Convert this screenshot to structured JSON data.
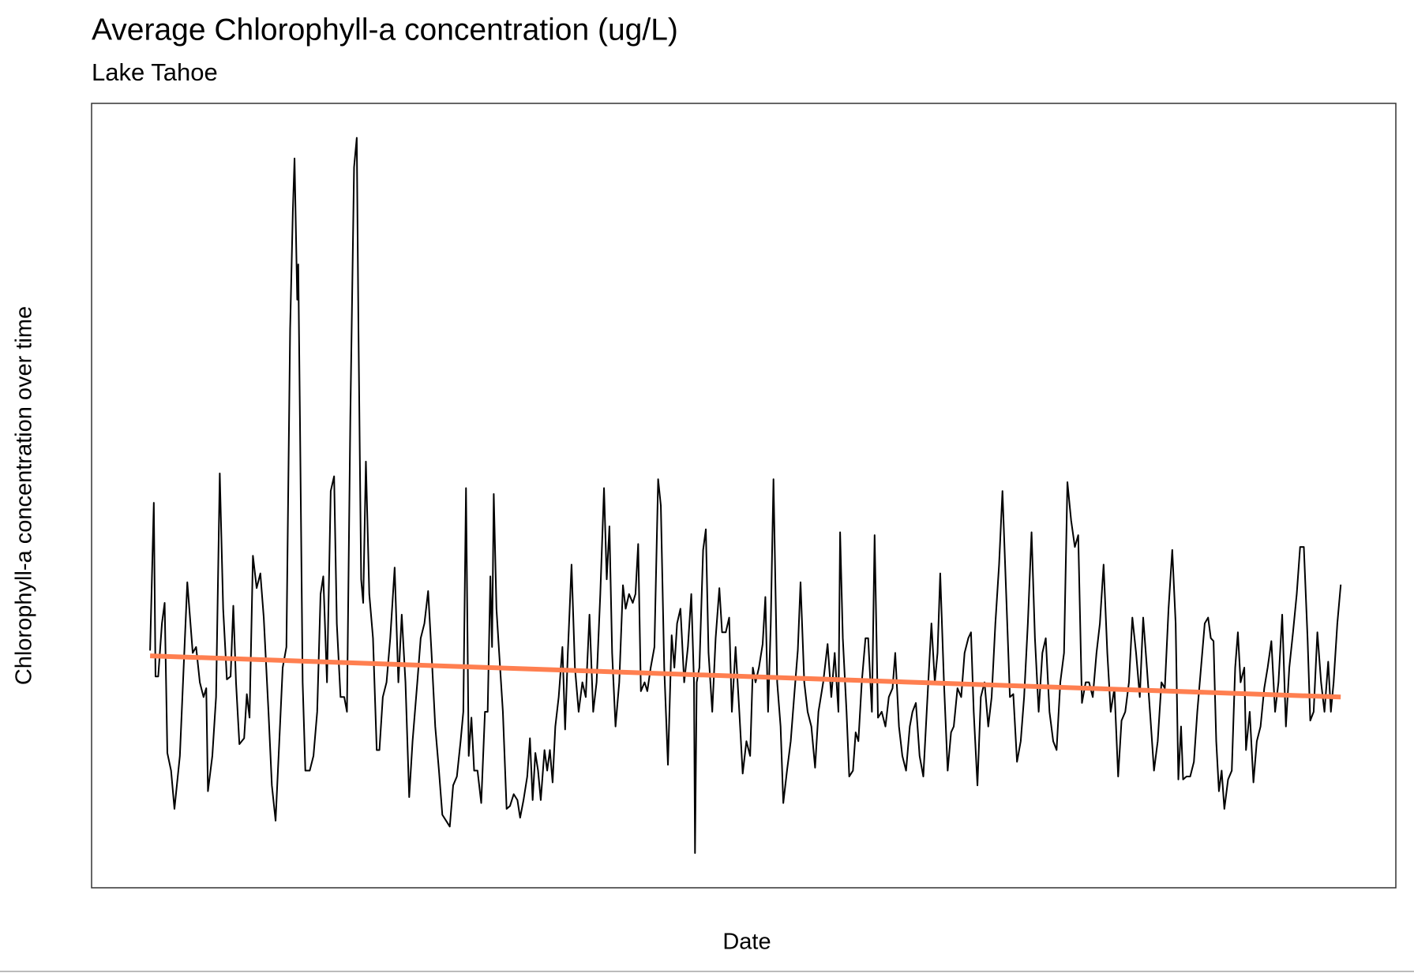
{
  "chart_data": {
    "type": "line",
    "title": "Average Chlorophyll-a concentration (ug/L)",
    "subtitle": "Lake Tahoe",
    "x_label": "Date",
    "y_label": "Chlorophyll-a concentration over time",
    "xlim": [
      1982.16,
      2020.72
    ],
    "ylim": [
      -0.098,
      2.567
    ],
    "xticks": [
      1990,
      2000,
      2010,
      2020
    ],
    "yticks": [
      {
        "value": 0,
        "label": "0.0"
      },
      0.5,
      {
        "value": 1,
        "label": "1.0"
      },
      1.5,
      {
        "value": 2,
        "label": "2.0"
      },
      2.5
    ],
    "grid": true,
    "minor_grid": true,
    "x": [
      1983.89,
      1984.0,
      1984.05,
      1984.13,
      1984.24,
      1984.32,
      1984.4,
      1984.51,
      1984.61,
      1984.77,
      1984.99,
      1985.15,
      1985.25,
      1985.36,
      1985.47,
      1985.55,
      1985.6,
      1985.73,
      1985.84,
      1985.95,
      1986.05,
      1986.16,
      1986.27,
      1986.35,
      1986.43,
      1986.53,
      1986.67,
      1986.75,
      1986.83,
      1986.93,
      1987.04,
      1987.15,
      1987.25,
      1987.39,
      1987.49,
      1987.6,
      1987.71,
      1987.81,
      1987.92,
      1988.03,
      1988.11,
      1988.16,
      1988.24,
      1988.27,
      1988.32,
      1988.4,
      1988.48,
      1988.61,
      1988.72,
      1988.83,
      1988.93,
      1989.01,
      1989.12,
      1989.23,
      1989.33,
      1989.41,
      1989.52,
      1989.63,
      1989.71,
      1989.81,
      1989.92,
      1990.0,
      1990.05,
      1990.13,
      1990.19,
      1990.27,
      1990.37,
      1990.48,
      1990.59,
      1990.67,
      1990.77,
      1990.88,
      1990.99,
      1991.12,
      1991.23,
      1991.33,
      1991.44,
      1991.55,
      1991.65,
      1991.79,
      1991.89,
      1992.0,
      1992.11,
      1992.21,
      1992.32,
      1992.43,
      1992.53,
      1992.64,
      1992.75,
      1992.85,
      1992.96,
      1993.07,
      1993.15,
      1993.23,
      1993.31,
      1993.39,
      1993.47,
      1993.57,
      1993.68,
      1993.79,
      1993.87,
      1993.95,
      1994.0,
      1994.05,
      1994.13,
      1994.21,
      1994.32,
      1994.43,
      1994.53,
      1994.64,
      1994.75,
      1994.83,
      1994.93,
      1995.04,
      1995.12,
      1995.2,
      1995.28,
      1995.36,
      1995.44,
      1995.55,
      1995.63,
      1995.71,
      1995.79,
      1995.87,
      1995.97,
      1996.08,
      1996.16,
      1996.24,
      1996.35,
      1996.45,
      1996.56,
      1996.67,
      1996.77,
      1996.88,
      1996.99,
      1997.09,
      1997.2,
      1997.31,
      1997.39,
      1997.47,
      1997.55,
      1997.65,
      1997.76,
      1997.87,
      1997.95,
      1998.05,
      1998.16,
      1998.24,
      1998.32,
      1998.4,
      1998.51,
      1998.59,
      1998.69,
      1998.8,
      1998.91,
      1998.99,
      1999.09,
      1999.2,
      1999.31,
      1999.39,
      1999.47,
      1999.57,
      1999.68,
      1999.79,
      1999.89,
      1999.97,
      2000.0,
      2000.05,
      2000.13,
      2000.24,
      2000.32,
      2000.4,
      2000.51,
      2000.61,
      2000.72,
      2000.8,
      2000.91,
      2001.01,
      2001.09,
      2001.2,
      2001.31,
      2001.41,
      2001.52,
      2001.63,
      2001.71,
      2001.79,
      2001.89,
      2002.0,
      2002.08,
      2002.16,
      2002.24,
      2002.32,
      2002.43,
      2002.53,
      2002.61,
      2002.72,
      2002.83,
      2002.93,
      2003.04,
      2003.12,
      2003.23,
      2003.33,
      2003.44,
      2003.55,
      2003.65,
      2003.79,
      2003.92,
      2004.03,
      2004.13,
      2004.24,
      2004.29,
      2004.37,
      2004.48,
      2004.56,
      2004.67,
      2004.75,
      2004.83,
      2004.93,
      2005.04,
      2005.12,
      2005.23,
      2005.31,
      2005.41,
      2005.52,
      2005.63,
      2005.73,
      2005.84,
      2005.92,
      2006.03,
      2006.13,
      2006.24,
      2006.35,
      2006.43,
      2006.53,
      2006.64,
      2006.75,
      2006.85,
      2006.99,
      2007.09,
      2007.17,
      2007.25,
      2007.36,
      2007.47,
      2007.57,
      2007.65,
      2007.76,
      2007.87,
      2007.97,
      2008.08,
      2008.16,
      2008.24,
      2008.35,
      2008.45,
      2008.56,
      2008.67,
      2008.77,
      2008.88,
      2008.99,
      2009.09,
      2009.2,
      2009.31,
      2009.41,
      2009.52,
      2009.63,
      2009.73,
      2009.84,
      2009.95,
      2010.05,
      2010.16,
      2010.27,
      2010.37,
      2010.48,
      2010.59,
      2010.69,
      2010.8,
      2010.91,
      2011.01,
      2011.12,
      2011.23,
      2011.33,
      2011.44,
      2011.55,
      2011.65,
      2011.76,
      2011.87,
      2011.97,
      2012.08,
      2012.19,
      2012.29,
      2012.4,
      2012.51,
      2012.61,
      2012.72,
      2012.83,
      2012.93,
      2013.04,
      2013.15,
      2013.25,
      2013.36,
      2013.47,
      2013.57,
      2013.68,
      2013.79,
      2013.89,
      2014.0,
      2014.11,
      2014.21,
      2014.29,
      2014.37,
      2014.43,
      2014.53,
      2014.64,
      2014.75,
      2014.85,
      2014.96,
      2015.07,
      2015.17,
      2015.25,
      2015.33,
      2015.41,
      2015.49,
      2015.57,
      2015.65,
      2015.76,
      2015.87,
      2015.97,
      2016.05,
      2016.13,
      2016.24,
      2016.29,
      2016.4,
      2016.51,
      2016.61,
      2016.72,
      2016.83,
      2016.93,
      2017.04,
      2017.15,
      2017.25,
      2017.36,
      2017.47,
      2017.57,
      2017.68,
      2017.79,
      2017.89,
      2018.0,
      2018.11,
      2018.19,
      2018.29,
      2018.4,
      2018.51,
      2018.61,
      2018.72,
      2018.8,
      2018.88,
      2018.99,
      2019.09
    ],
    "series": [
      {
        "color": "#000000",
        "values": [
          0.71,
          1.21,
          0.62,
          0.62,
          0.8,
          0.87,
          0.36,
          0.3,
          0.17,
          0.35,
          0.94,
          0.7,
          0.72,
          0.6,
          0.55,
          0.58,
          0.23,
          0.35,
          0.55,
          1.31,
          0.85,
          0.61,
          0.62,
          0.86,
          0.6,
          0.39,
          0.41,
          0.56,
          0.48,
          1.03,
          0.92,
          0.97,
          0.82,
          0.5,
          0.25,
          0.13,
          0.4,
          0.65,
          0.72,
          1.8,
          2.2,
          2.38,
          1.9,
          2.02,
          1.5,
          0.6,
          0.3,
          0.3,
          0.35,
          0.5,
          0.9,
          0.96,
          0.6,
          1.25,
          1.3,
          0.8,
          0.55,
          0.55,
          0.5,
          1.5,
          2.35,
          2.45,
          1.8,
          0.95,
          0.87,
          1.35,
          0.9,
          0.75,
          0.37,
          0.37,
          0.55,
          0.6,
          0.75,
          0.99,
          0.6,
          0.83,
          0.6,
          0.21,
          0.4,
          0.6,
          0.75,
          0.8,
          0.91,
          0.7,
          0.45,
          0.3,
          0.15,
          0.13,
          0.11,
          0.25,
          0.28,
          0.4,
          0.5,
          1.26,
          0.35,
          0.48,
          0.3,
          0.3,
          0.19,
          0.5,
          0.5,
          0.96,
          0.72,
          1.24,
          0.85,
          0.7,
          0.5,
          0.17,
          0.18,
          0.22,
          0.2,
          0.14,
          0.2,
          0.28,
          0.41,
          0.2,
          0.36,
          0.3,
          0.2,
          0.37,
          0.3,
          0.37,
          0.26,
          0.45,
          0.55,
          0.72,
          0.44,
          0.7,
          1.0,
          0.65,
          0.5,
          0.6,
          0.55,
          0.83,
          0.5,
          0.6,
          0.9,
          1.26,
          0.95,
          1.13,
          0.7,
          0.45,
          0.6,
          0.93,
          0.85,
          0.9,
          0.87,
          0.9,
          1.07,
          0.57,
          0.6,
          0.57,
          0.65,
          0.72,
          1.29,
          1.2,
          0.65,
          0.32,
          0.76,
          0.65,
          0.8,
          0.85,
          0.6,
          0.72,
          0.9,
          0.6,
          0.02,
          0.6,
          0.65,
          1.05,
          1.12,
          0.7,
          0.5,
          0.75,
          0.92,
          0.77,
          0.77,
          0.82,
          0.5,
          0.72,
          0.5,
          0.29,
          0.4,
          0.35,
          0.65,
          0.6,
          0.65,
          0.73,
          0.89,
          0.5,
          0.8,
          1.29,
          0.6,
          0.45,
          0.19,
          0.3,
          0.4,
          0.55,
          0.71,
          0.94,
          0.6,
          0.5,
          0.45,
          0.31,
          0.5,
          0.6,
          0.73,
          0.55,
          0.7,
          0.5,
          1.11,
          0.75,
          0.5,
          0.28,
          0.3,
          0.43,
          0.4,
          0.6,
          0.75,
          0.75,
          0.5,
          1.1,
          0.48,
          0.5,
          0.45,
          0.55,
          0.58,
          0.7,
          0.45,
          0.35,
          0.3,
          0.45,
          0.5,
          0.53,
          0.35,
          0.28,
          0.5,
          0.8,
          0.6,
          0.7,
          0.97,
          0.6,
          0.3,
          0.43,
          0.45,
          0.58,
          0.55,
          0.7,
          0.75,
          0.77,
          0.5,
          0.25,
          0.55,
          0.6,
          0.45,
          0.55,
          0.8,
          1.0,
          1.25,
          0.9,
          0.55,
          0.56,
          0.33,
          0.4,
          0.55,
          0.8,
          1.11,
          0.75,
          0.5,
          0.7,
          0.75,
          0.5,
          0.4,
          0.37,
          0.6,
          0.7,
          1.28,
          1.15,
          1.06,
          1.1,
          0.53,
          0.6,
          0.6,
          0.55,
          0.7,
          0.8,
          1.0,
          0.7,
          0.5,
          0.58,
          0.28,
          0.47,
          0.5,
          0.6,
          0.82,
          0.7,
          0.55,
          0.82,
          0.65,
          0.47,
          0.3,
          0.4,
          0.6,
          0.58,
          0.85,
          1.05,
          0.8,
          0.27,
          0.45,
          0.27,
          0.28,
          0.28,
          0.33,
          0.5,
          0.65,
          0.8,
          0.82,
          0.75,
          0.74,
          0.4,
          0.23,
          0.3,
          0.17,
          0.27,
          0.3,
          0.65,
          0.77,
          0.6,
          0.65,
          0.37,
          0.5,
          0.26,
          0.4,
          0.45,
          0.58,
          0.65,
          0.74,
          0.5,
          0.6,
          0.83,
          0.45,
          0.65,
          0.77,
          0.9,
          1.06,
          1.06,
          0.75,
          0.47,
          0.5,
          0.77,
          0.6,
          0.5,
          0.67,
          0.5,
          0.6,
          0.8,
          0.93
        ]
      },
      {
        "color": "#FF7F50",
        "x": [
          1983.89,
          2019.09
        ],
        "values": [
          0.69,
          0.55
        ]
      }
    ]
  }
}
